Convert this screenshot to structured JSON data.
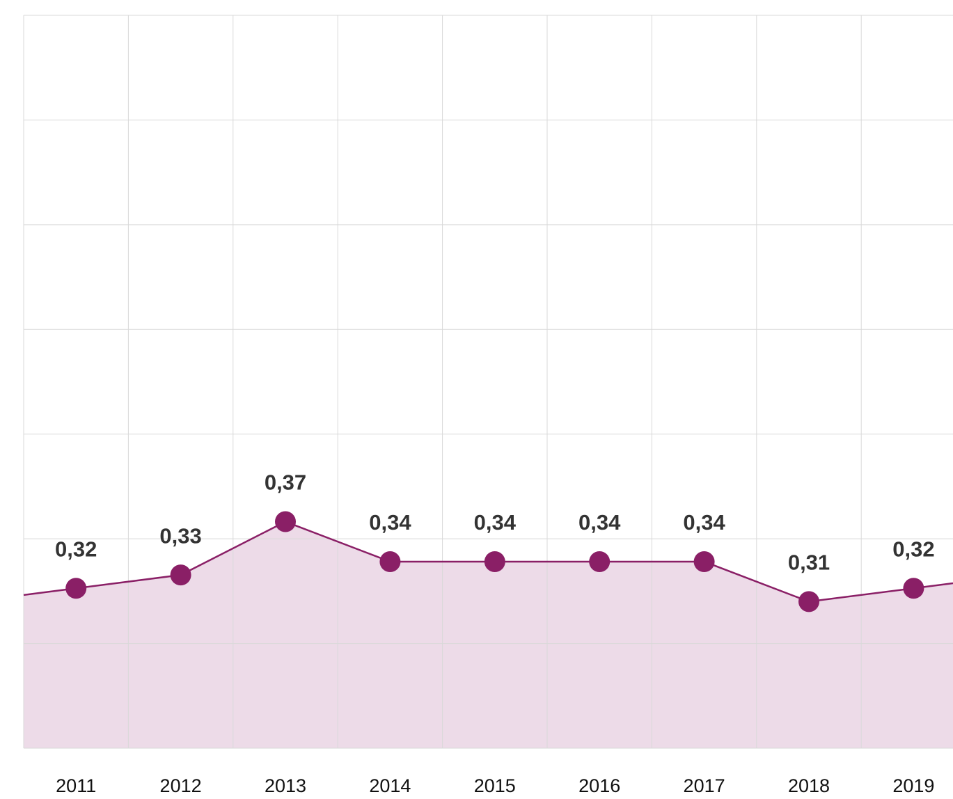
{
  "chart_data": {
    "type": "area",
    "categories": [
      "2011",
      "2012",
      "2013",
      "2014",
      "2015",
      "2016",
      "2017",
      "2018",
      "2019"
    ],
    "values": [
      0.32,
      0.33,
      0.37,
      0.34,
      0.34,
      0.34,
      0.34,
      0.31,
      0.32
    ],
    "value_labels": [
      "0,32",
      "0,33",
      "0,37",
      "0,34",
      "0,34",
      "0,34",
      "0,34",
      "0,31",
      "0,32"
    ],
    "color": "#8a1f66",
    "fill": "#eddbe8",
    "ylim": [
      0.2,
      0.75
    ],
    "grid": true
  }
}
